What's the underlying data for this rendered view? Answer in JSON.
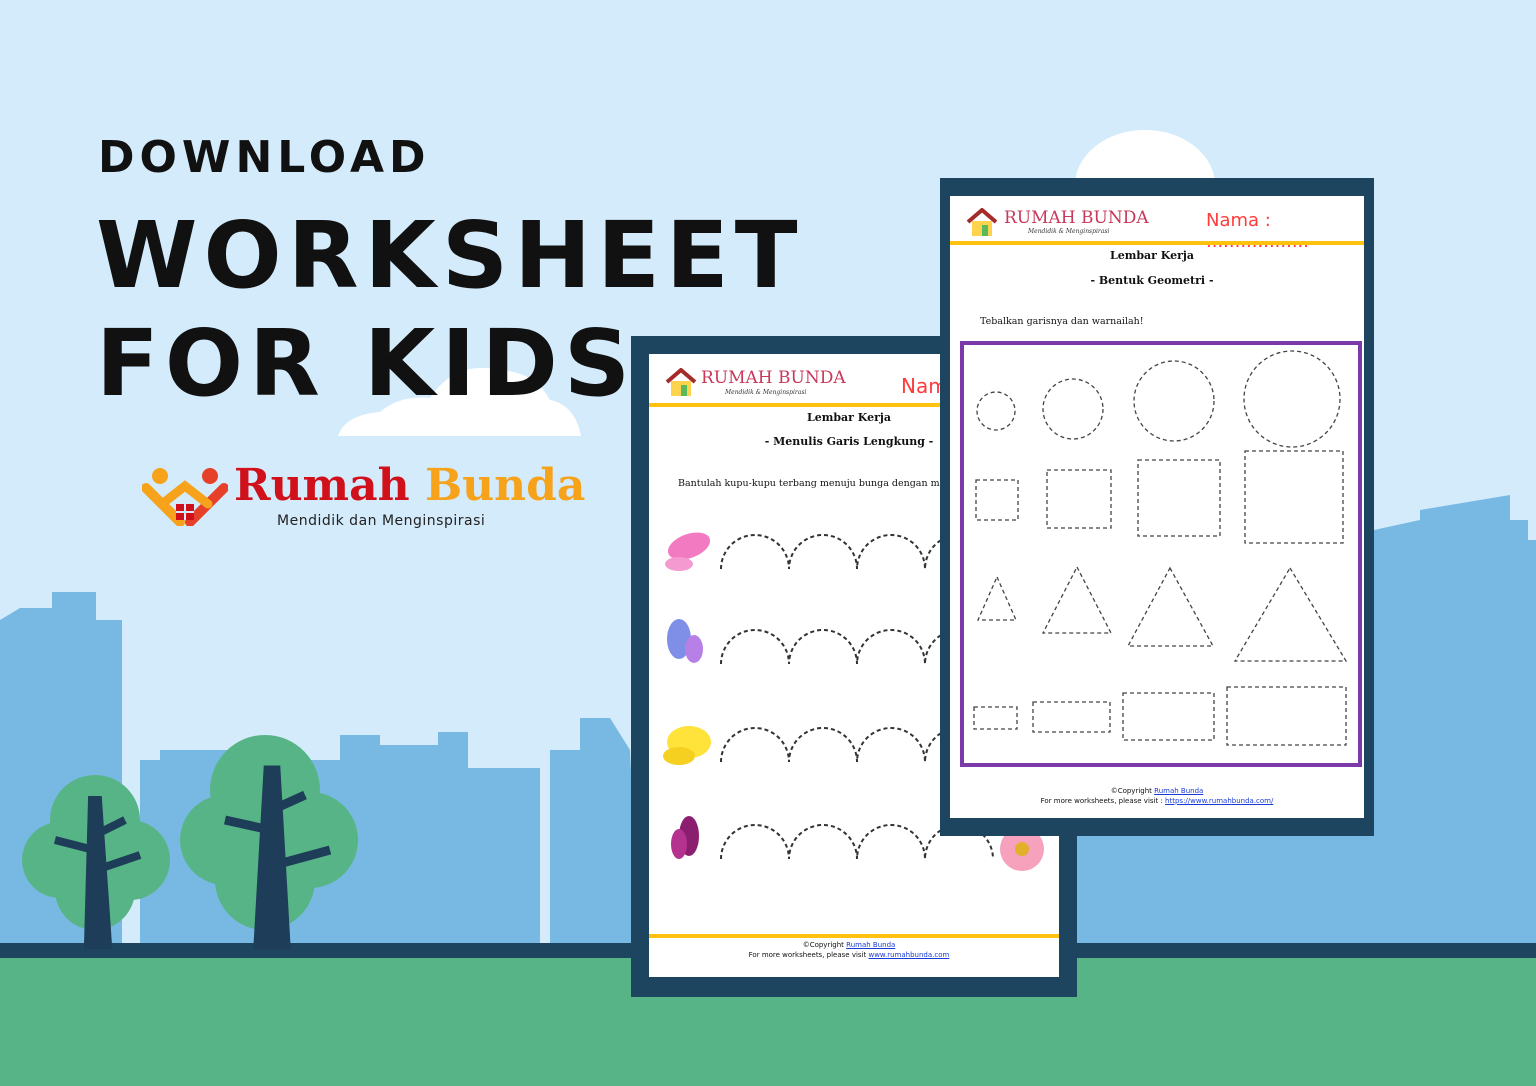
{
  "headline": {
    "kicker": "DOWNLOAD",
    "line1": "WORKSHEET",
    "line2": "FOR KIDS"
  },
  "brand": {
    "name_part1": "Rumah",
    "name_part2": "Bunda",
    "tagline": "Mendidik dan Menginspirasi"
  },
  "worksheet_back": {
    "logo": "RUMAH BUNDA",
    "logo_sub": "Mendidik & Menginspirasi",
    "name_label": "Nama",
    "title": "Lembar Kerja",
    "subtitle": "-  Menulis Garis Lengkung  -",
    "instruction": "Bantulah kupu-kupu terbang menuju bunga dengan menebalkan titik-titiknya!",
    "copyright": "©Copyright",
    "copyright_link": "Rumah Bunda",
    "visit": "For more worksheets, please visit",
    "url": "www.rumahbunda.com"
  },
  "worksheet_front": {
    "logo": "RUMAH BUNDA",
    "logo_sub": "Mendidik & Menginspirasi",
    "name_label": "Nama  :  ..................",
    "title": "Lembar Kerja",
    "subtitle": "-  Bentuk Geometri -",
    "instruction": "Tebalkan garisnya dan warnailah!",
    "copyright": "©Copyright",
    "copyright_link": "Rumah Bunda",
    "visit": "For more worksheets, please visit :",
    "url": "https://www.rumahbunda.com/"
  },
  "colors": {
    "sky": "#d4ebfb",
    "buildings": "#78b9e4",
    "ground": "#57b486",
    "frame": "#1e4560",
    "accent_yellow": "#ffc20e",
    "shape_border": "#7a3aa8"
  }
}
